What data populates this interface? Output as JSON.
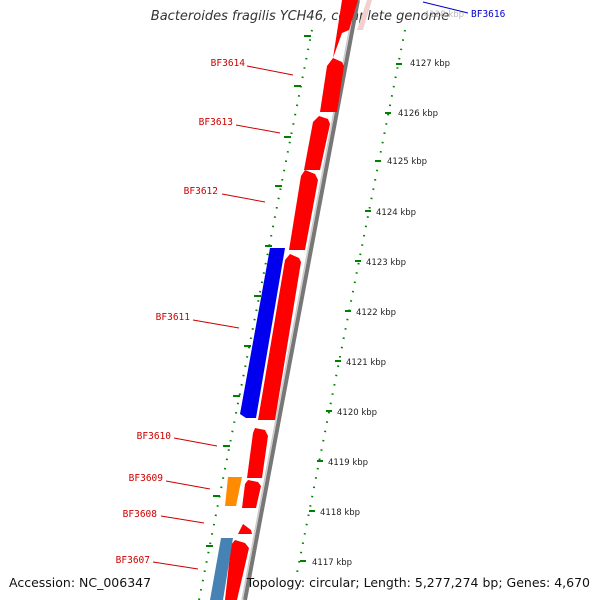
{
  "title": "Bacteroides fragilis YCH46, complete genome",
  "accession": "Accession: NC_006347",
  "summary": "Topology: circular; Length: 5,277,274 bp; Genes: 4,670",
  "colors": {
    "forward_gene": "#ff0000",
    "reverse_gene": "#0000ee",
    "orange_gene": "#ff8c00",
    "steelblue_gene": "#4682b4",
    "tick": "#008000",
    "backbone": "#888888",
    "gene_label": "#cc0000",
    "blue_label": "#0000cc"
  },
  "gene_labels": [
    "BF3616",
    "BF3614",
    "BF3613",
    "BF3612",
    "BF3611",
    "BF3610",
    "BF3609",
    "BF3608",
    "BF3607"
  ],
  "scale_labels": [
    "4128 kbp",
    "4127 kbp",
    "4126 kbp",
    "4125 kbp",
    "4124 kbp",
    "4123 kbp",
    "4122 kbp",
    "4121 kbp",
    "4120 kbp",
    "4119 kbp",
    "4118 kbp",
    "4117 kbp"
  ]
}
